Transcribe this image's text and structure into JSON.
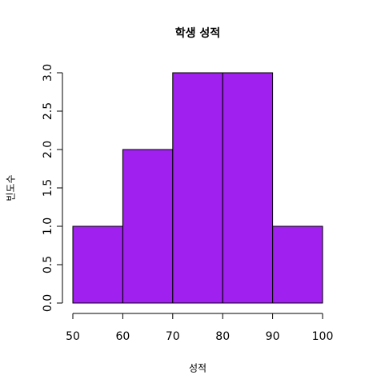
{
  "chart_data": {
    "type": "histogram",
    "title": "학생 성적",
    "x_label": "성적",
    "y_label": "빈도수",
    "bins": [
      50,
      60,
      70,
      80,
      90,
      100
    ],
    "counts": [
      1,
      2,
      3,
      3,
      1
    ],
    "color": "#a020f0",
    "xlim": [
      50,
      100
    ],
    "xticks": [
      50,
      60,
      70,
      80,
      90,
      100
    ],
    "ylim": [
      0,
      3
    ],
    "yticks": [
      {
        "value": 0,
        "label": "0.0"
      },
      0.5,
      {
        "value": 1,
        "label": "1.0"
      },
      1.5,
      {
        "value": 2,
        "label": "2.0"
      },
      2.5,
      {
        "value": 3,
        "label": "3.0"
      }
    ]
  }
}
